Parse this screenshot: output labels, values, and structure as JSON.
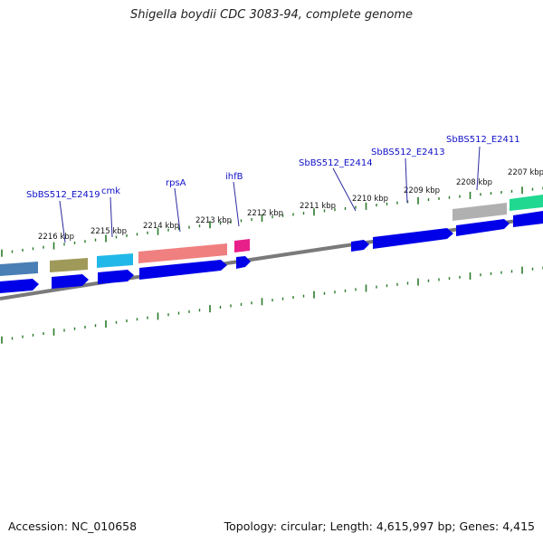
{
  "title": "Shigella boydii CDC 3083-94, complete genome",
  "footer": {
    "accession": "Accession: NC_010658",
    "summary": "Topology: circular; Length: 4,615,997 bp; Genes: 4,415"
  },
  "colors": {
    "gene_label": "#1010c8",
    "tick": "#2a7a2a",
    "cds": "#0000e8",
    "backbone": "#888888"
  },
  "kbp_labels": [
    "2216 kbp",
    "2215 kbp",
    "2214 kbp",
    "2213 kbp",
    "2212 kbp",
    "2211 kbp",
    "2210 kbp",
    "2209 kbp",
    "2208 kbp",
    "2207 kbp"
  ],
  "gene_labels": [
    "SbBS512_E2419",
    "cmk",
    "rpsA",
    "ihfB",
    "SbBS512_E2414",
    "SbBS512_E2413",
    "SbBS512_E2411"
  ],
  "feature_colors": {
    "steelblue": "#4a7fb5",
    "olive": "#a09a5a",
    "cyan": "#20b8e8",
    "salmon": "#f08080",
    "magenta": "#e8208a",
    "grey": "#b0b0b0",
    "green": "#20d890"
  }
}
